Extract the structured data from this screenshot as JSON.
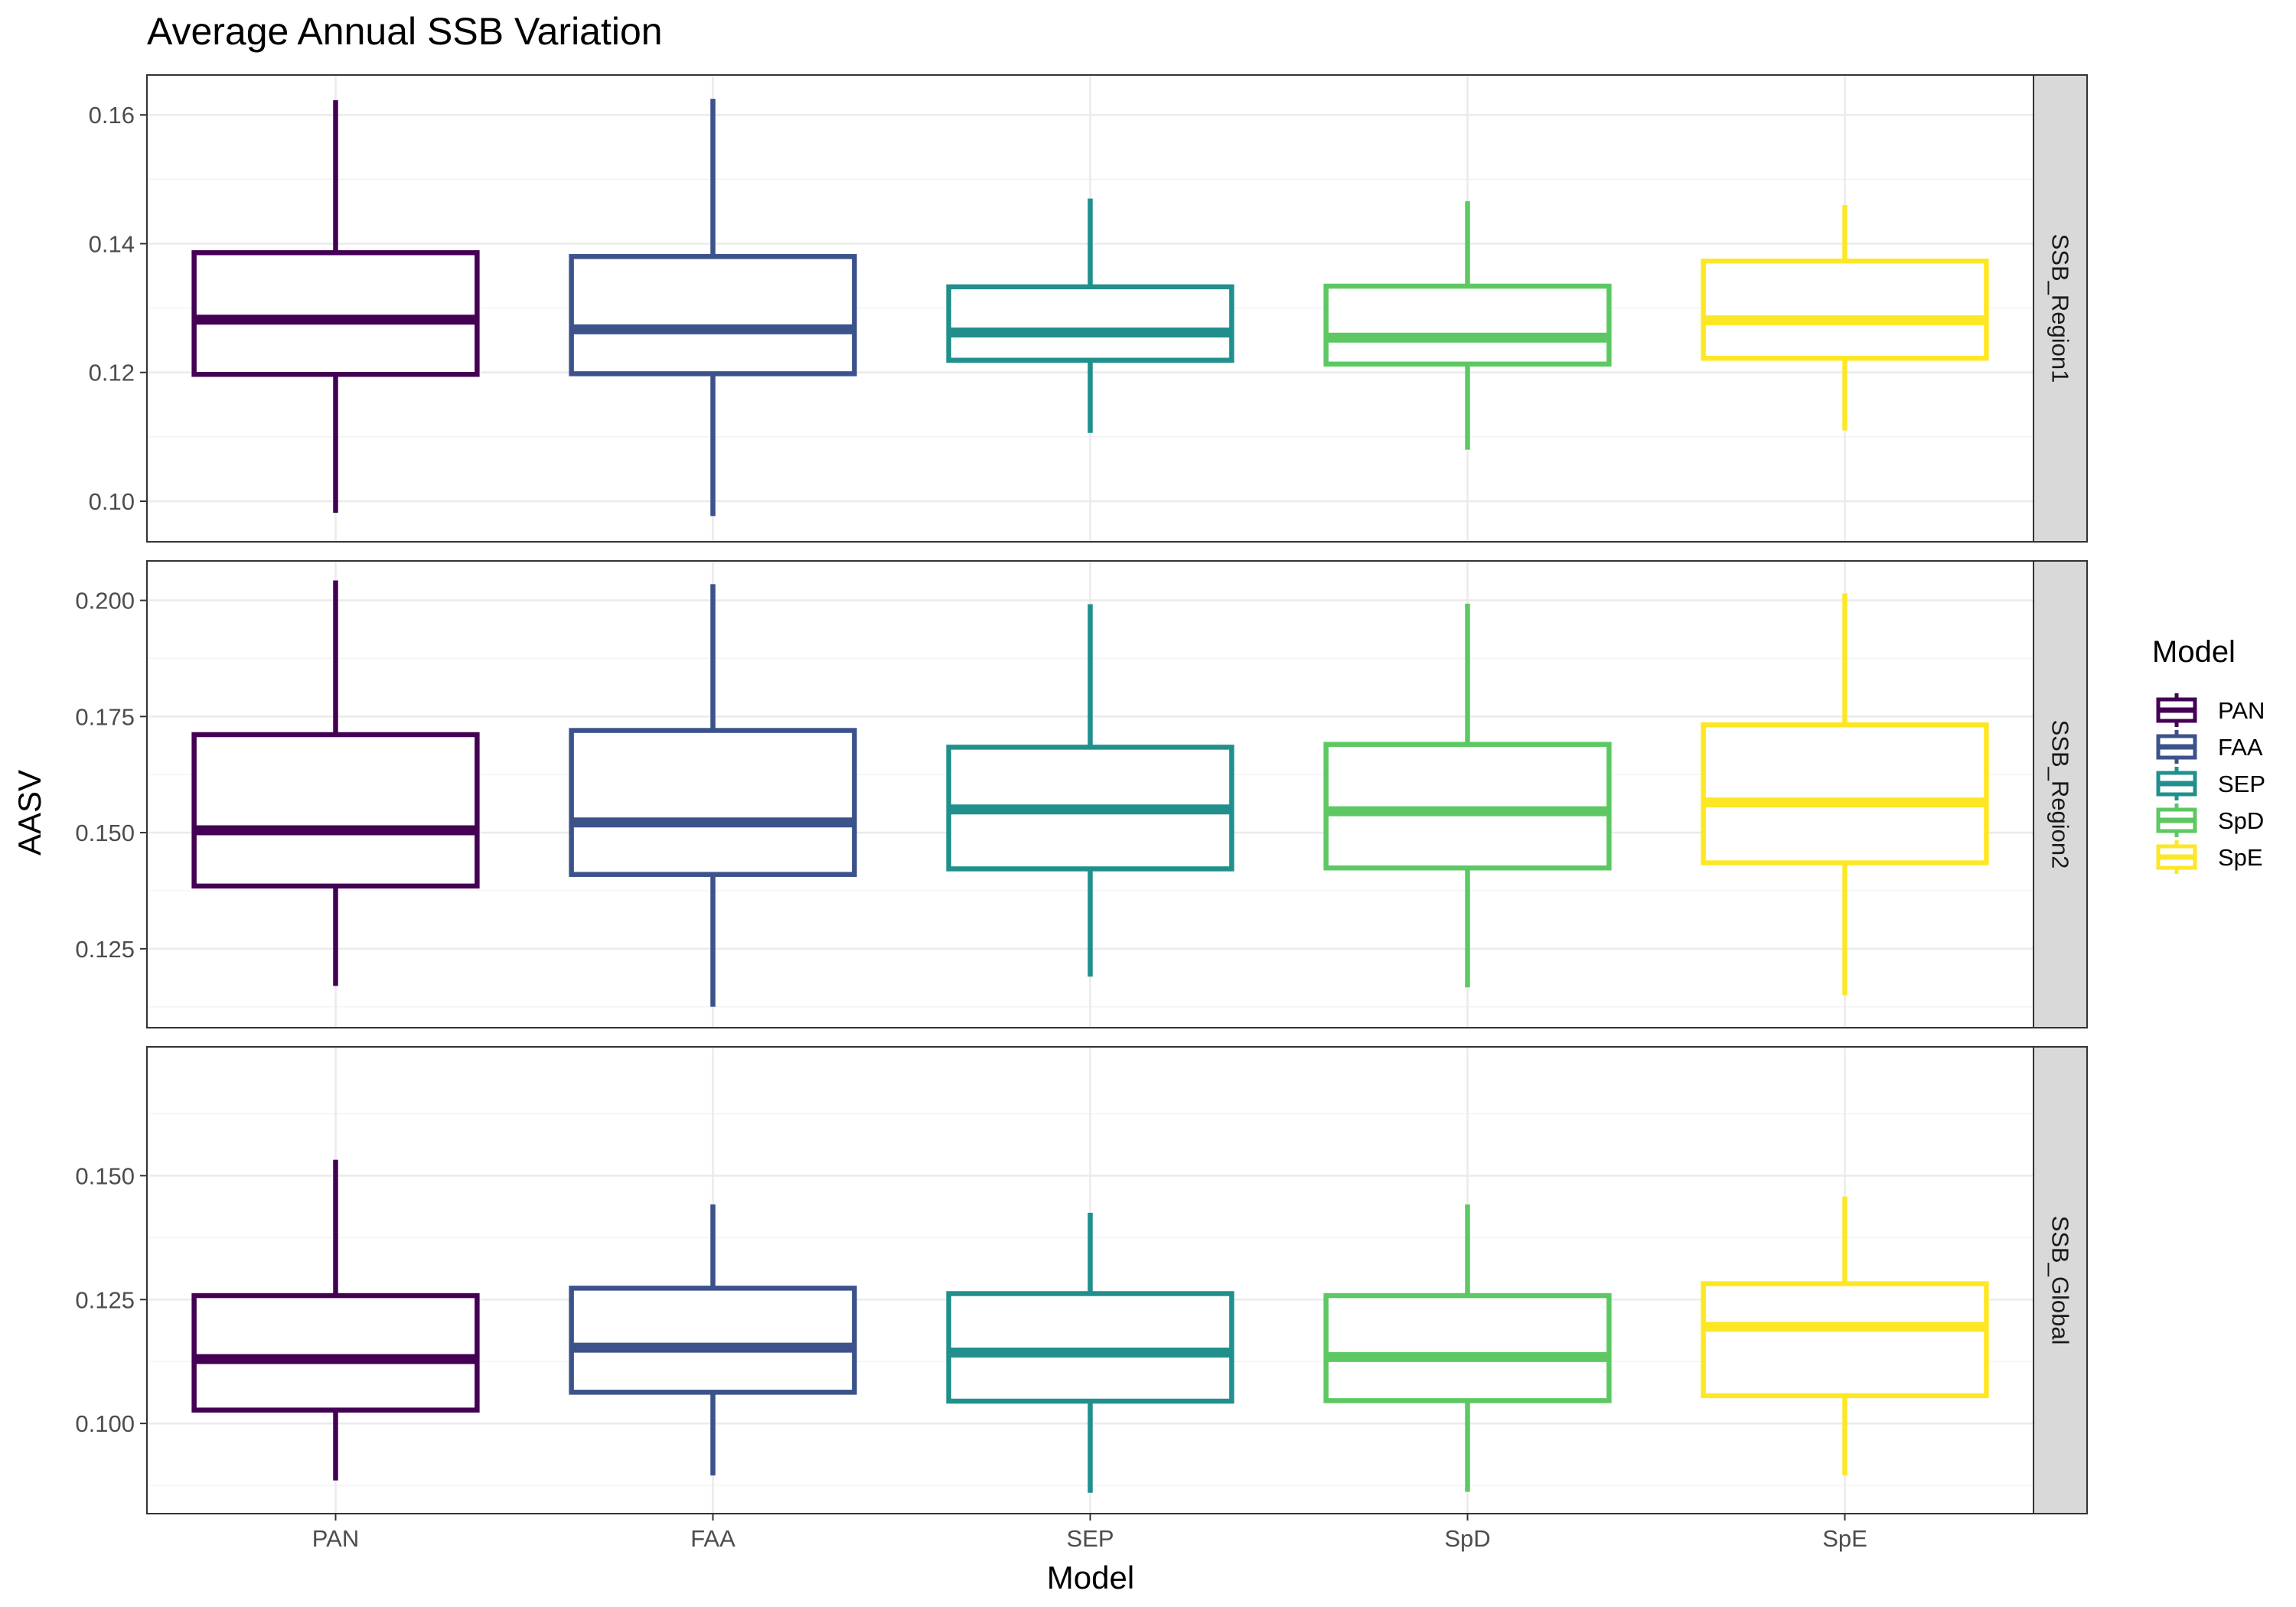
{
  "chart_data": {
    "type": "boxplot",
    "title": "Average Annual SSB Variation",
    "xlabel": "Model",
    "ylabel": "AASV",
    "categories": [
      "PAN",
      "FAA",
      "SEP",
      "SpD",
      "SpE"
    ],
    "colors": {
      "PAN": "#440154",
      "FAA": "#3B528B",
      "SEP": "#21908C",
      "SpD": "#5DC863",
      "SpE": "#FDE725"
    },
    "legend": {
      "title": "Model",
      "position": "right",
      "entries": [
        "PAN",
        "FAA",
        "SEP",
        "SpD",
        "SpE"
      ]
    },
    "grid": true,
    "facets": [
      {
        "label": "SSB_Region1",
        "ylim": [
          0.0937,
          0.1662
        ],
        "yticks": [
          0.1,
          0.12,
          0.14,
          0.16
        ],
        "ytick_labels": [
          "0.10",
          "0.12",
          "0.14",
          "0.16"
        ],
        "boxes": [
          {
            "model": "PAN",
            "min": 0.0982,
            "q1": 0.1197,
            "median": 0.1282,
            "q3": 0.1386,
            "max": 0.1623
          },
          {
            "model": "FAA",
            "min": 0.0977,
            "q1": 0.1198,
            "median": 0.1267,
            "q3": 0.138,
            "max": 0.1625
          },
          {
            "model": "SEP",
            "min": 0.1106,
            "q1": 0.1219,
            "median": 0.1262,
            "q3": 0.1333,
            "max": 0.147
          },
          {
            "model": "SpD",
            "min": 0.108,
            "q1": 0.1213,
            "median": 0.1254,
            "q3": 0.1334,
            "max": 0.1466
          },
          {
            "model": "SpE",
            "min": 0.111,
            "q1": 0.1222,
            "median": 0.1281,
            "q3": 0.1373,
            "max": 0.146
          }
        ]
      },
      {
        "label": "SSB_Region2",
        "ylim": [
          0.108,
          0.2085
        ],
        "yticks": [
          0.125,
          0.15,
          0.175,
          0.2
        ],
        "ytick_labels": [
          "0.125",
          "0.150",
          "0.175",
          "0.200"
        ],
        "boxes": [
          {
            "model": "PAN",
            "min": 0.117,
            "q1": 0.1385,
            "median": 0.1505,
            "q3": 0.1711,
            "max": 0.2043
          },
          {
            "model": "FAA",
            "min": 0.1125,
            "q1": 0.141,
            "median": 0.1522,
            "q3": 0.172,
            "max": 0.2035
          },
          {
            "model": "SEP",
            "min": 0.119,
            "q1": 0.1422,
            "median": 0.155,
            "q3": 0.1684,
            "max": 0.1992
          },
          {
            "model": "SpD",
            "min": 0.1167,
            "q1": 0.1424,
            "median": 0.1546,
            "q3": 0.169,
            "max": 0.1993
          },
          {
            "model": "SpE",
            "min": 0.115,
            "q1": 0.1435,
            "median": 0.1565,
            "q3": 0.1732,
            "max": 0.2015
          }
        ]
      },
      {
        "label": "SSB_Global",
        "ylim": [
          0.0818,
          0.176
        ],
        "yticks": [
          0.1,
          0.125,
          0.15
        ],
        "ytick_labels": [
          "0.100",
          "0.125",
          "0.150"
        ],
        "boxes": [
          {
            "model": "PAN",
            "min": 0.0885,
            "q1": 0.1027,
            "median": 0.113,
            "q3": 0.1258,
            "max": 0.1532
          },
          {
            "model": "FAA",
            "min": 0.0895,
            "q1": 0.1063,
            "median": 0.1153,
            "q3": 0.1273,
            "max": 0.1442
          },
          {
            "model": "SEP",
            "min": 0.086,
            "q1": 0.1045,
            "median": 0.1143,
            "q3": 0.1262,
            "max": 0.1425
          },
          {
            "model": "SpD",
            "min": 0.0862,
            "q1": 0.1046,
            "median": 0.1134,
            "q3": 0.1258,
            "max": 0.1442
          },
          {
            "model": "SpE",
            "min": 0.0895,
            "q1": 0.1056,
            "median": 0.1195,
            "q3": 0.1282,
            "max": 0.1458
          }
        ]
      }
    ]
  }
}
